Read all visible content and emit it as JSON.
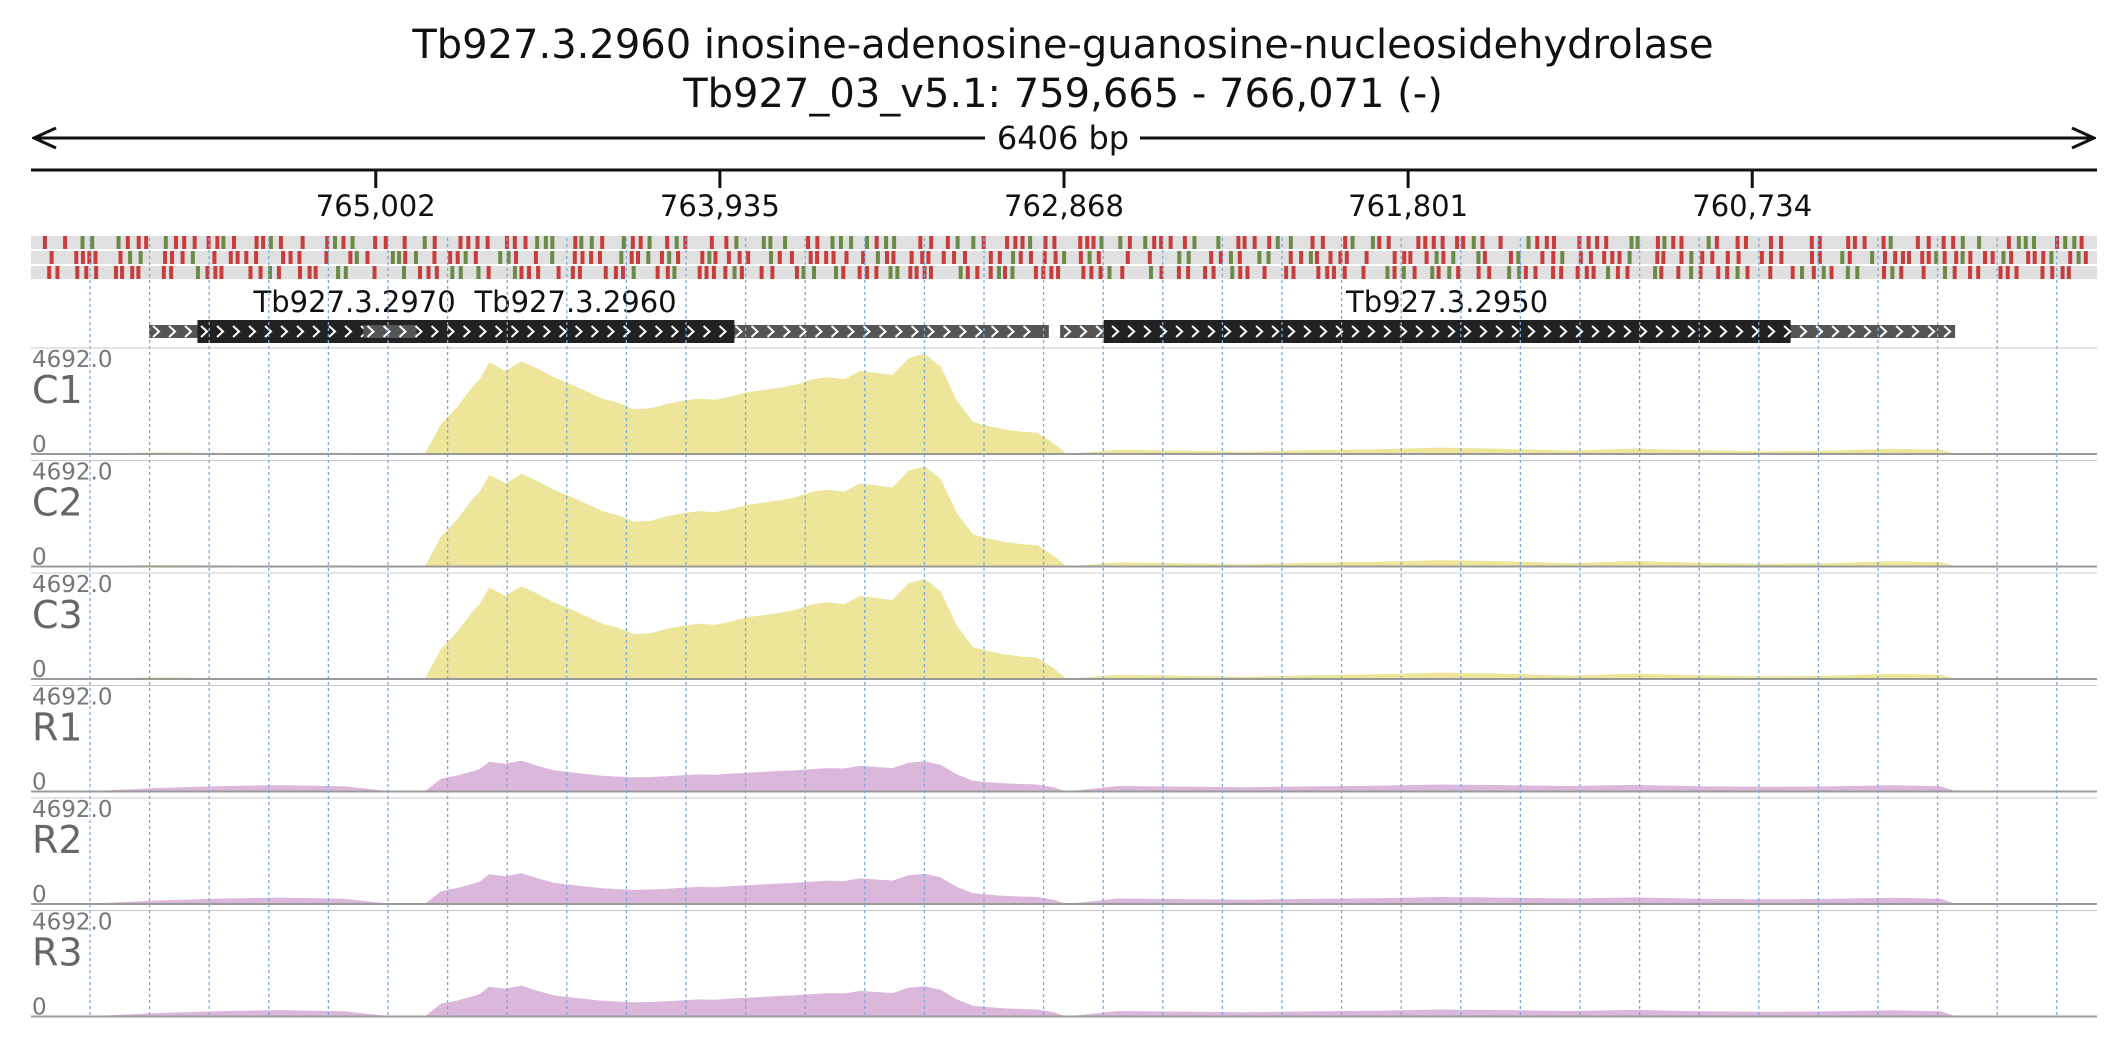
{
  "chart_data": {
    "type": "area",
    "title": "Tb927.3.2960  inosine-adenosine-guanosine-nucleosidehydrolase",
    "subtitle": "Tb927_03_v5.1: 759,665 - 766,071 (-)",
    "span_label": "6406 bp",
    "x_range": [
      759665,
      766071
    ],
    "x_reversed": true,
    "ticks": [
      {
        "pos": 765002,
        "label": "765,002"
      },
      {
        "pos": 763935,
        "label": "763,935"
      },
      {
        "pos": 762868,
        "label": "762,868"
      },
      {
        "pos": 761801,
        "label": "761,801"
      },
      {
        "pos": 760734,
        "label": "760,734"
      }
    ],
    "genes": [
      {
        "name": "Tb927.3.2970",
        "utr": [
          764360,
          765705
        ],
        "cds": [
          764580,
          765555
        ]
      },
      {
        "name": "Tb927.3.2960",
        "utr": [
          762915,
          765040
        ],
        "cds": [
          763890,
          764875
        ]
      },
      {
        "name": "Tb927.3.2950",
        "utr": [
          760105,
          762880
        ],
        "cds": [
          760615,
          762745
        ]
      }
    ],
    "y_max_label": "4692.0",
    "y_min_label": "0",
    "ylim": [
      0,
      4692.0
    ],
    "profile_x": [
      766071,
      765900,
      765700,
      765500,
      765300,
      765100,
      764950,
      764850,
      764800,
      764750,
      764700,
      764680,
      764650,
      764600,
      764550,
      764500,
      764450,
      764400,
      764350,
      764300,
      764250,
      764200,
      764150,
      764100,
      764050,
      764000,
      763950,
      763900,
      763850,
      763800,
      763750,
      763700,
      763650,
      763600,
      763550,
      763500,
      763450,
      763400,
      763350,
      763300,
      763250,
      763200,
      763150,
      763100,
      763050,
      763000,
      762950,
      762900,
      762860,
      762700,
      762500,
      762300,
      762100,
      761900,
      761700,
      761500,
      761300,
      761100,
      760900,
      760700,
      760500,
      760300,
      760150,
      760100,
      759900,
      759665
    ],
    "series": [
      {
        "name": "C1",
        "color": "#ede59a",
        "values": [
          0,
          0,
          70,
          50,
          40,
          60,
          0,
          0,
          1400,
          2200,
          3200,
          3500,
          4300,
          3900,
          4350,
          4000,
          3600,
          3300,
          2950,
          2600,
          2400,
          2100,
          2150,
          2350,
          2500,
          2600,
          2550,
          2700,
          2900,
          3000,
          3100,
          3250,
          3500,
          3600,
          3500,
          3900,
          3800,
          3700,
          4500,
          4700,
          4100,
          2500,
          1500,
          1300,
          1150,
          1050,
          1000,
          500,
          0,
          200,
          150,
          100,
          180,
          220,
          300,
          250,
          150,
          260,
          180,
          120,
          150,
          250,
          200,
          0,
          0,
          0
        ]
      },
      {
        "name": "C2",
        "color": "#ede59a",
        "values": [
          0,
          0,
          70,
          50,
          40,
          60,
          0,
          0,
          1400,
          2200,
          3200,
          3500,
          4300,
          3900,
          4350,
          4000,
          3600,
          3300,
          2950,
          2600,
          2400,
          2100,
          2150,
          2350,
          2500,
          2600,
          2550,
          2700,
          2900,
          3000,
          3100,
          3250,
          3500,
          3600,
          3500,
          3900,
          3800,
          3700,
          4500,
          4700,
          4100,
          2500,
          1500,
          1300,
          1150,
          1050,
          1000,
          500,
          0,
          200,
          150,
          100,
          180,
          220,
          300,
          250,
          150,
          260,
          180,
          120,
          150,
          250,
          200,
          0,
          0,
          0
        ]
      },
      {
        "name": "C3",
        "color": "#ede59a",
        "values": [
          0,
          0,
          70,
          50,
          40,
          60,
          0,
          0,
          1400,
          2200,
          3200,
          3500,
          4300,
          3900,
          4350,
          4000,
          3600,
          3300,
          2950,
          2600,
          2400,
          2100,
          2150,
          2350,
          2500,
          2600,
          2550,
          2700,
          2900,
          3000,
          3100,
          3250,
          3500,
          3600,
          3500,
          3900,
          3800,
          3700,
          4500,
          4700,
          4100,
          2500,
          1500,
          1300,
          1150,
          1050,
          1000,
          500,
          0,
          200,
          150,
          100,
          180,
          220,
          300,
          250,
          150,
          260,
          180,
          120,
          150,
          250,
          200,
          0,
          0,
          0
        ]
      },
      {
        "name": "R1",
        "color": "#dbb7dc",
        "values": [
          0,
          0,
          150,
          250,
          300,
          250,
          0,
          0,
          600,
          750,
          950,
          1050,
          1400,
          1300,
          1450,
          1200,
          1000,
          900,
          820,
          740,
          700,
          660,
          680,
          720,
          760,
          800,
          790,
          840,
          880,
          920,
          960,
          1000,
          1050,
          1100,
          1080,
          1200,
          1150,
          1100,
          1350,
          1420,
          1250,
          800,
          500,
          430,
          380,
          350,
          330,
          200,
          0,
          260,
          230,
          200,
          240,
          270,
          330,
          300,
          260,
          310,
          250,
          220,
          240,
          290,
          250,
          0,
          0,
          0
        ]
      },
      {
        "name": "R2",
        "color": "#dbb7dc",
        "values": [
          0,
          0,
          150,
          250,
          300,
          250,
          0,
          0,
          600,
          750,
          950,
          1050,
          1400,
          1300,
          1450,
          1200,
          1000,
          900,
          820,
          740,
          700,
          660,
          680,
          720,
          760,
          800,
          790,
          840,
          880,
          920,
          960,
          1000,
          1050,
          1100,
          1080,
          1200,
          1150,
          1100,
          1350,
          1420,
          1250,
          800,
          500,
          430,
          380,
          350,
          330,
          200,
          0,
          260,
          230,
          200,
          240,
          270,
          330,
          300,
          260,
          310,
          250,
          220,
          240,
          290,
          250,
          0,
          0,
          0
        ]
      },
      {
        "name": "R3",
        "color": "#dbb7dc",
        "values": [
          0,
          0,
          150,
          250,
          300,
          250,
          0,
          0,
          600,
          750,
          950,
          1050,
          1400,
          1300,
          1450,
          1200,
          1000,
          900,
          820,
          740,
          700,
          660,
          680,
          720,
          760,
          800,
          790,
          840,
          880,
          920,
          960,
          1000,
          1050,
          1100,
          1080,
          1200,
          1150,
          1100,
          1350,
          1420,
          1250,
          800,
          500,
          430,
          380,
          350,
          330,
          200,
          0,
          260,
          230,
          200,
          240,
          270,
          330,
          300,
          260,
          310,
          250,
          220,
          240,
          290,
          250,
          0,
          0,
          0
        ]
      }
    ],
    "grid": true,
    "colors": {
      "track_gray": "#e0e0e0",
      "mark_red": "#c83c3c",
      "mark_green": "#6b8a45",
      "cds": "#222222",
      "utr": "#555555",
      "gridline": "#7aa9dc",
      "axis": "#111111"
    }
  }
}
